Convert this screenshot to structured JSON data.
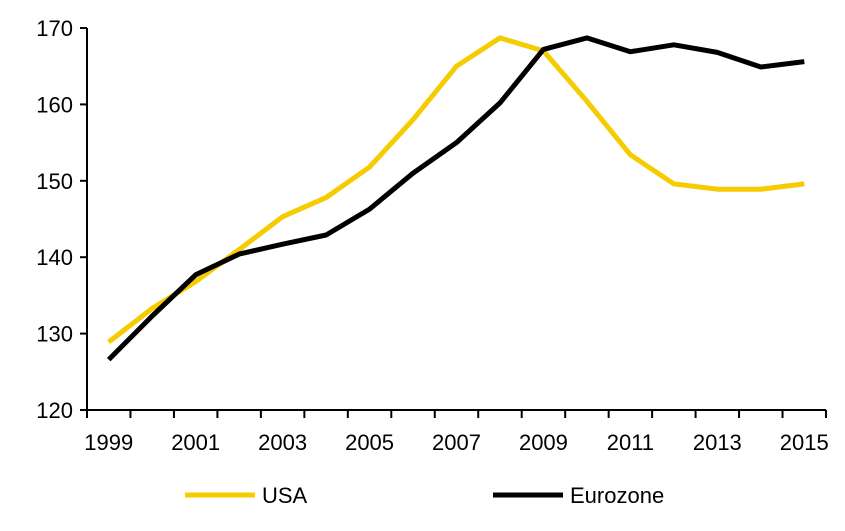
{
  "chart_data": {
    "type": "line",
    "title": "",
    "xlabel": "",
    "ylabel": "",
    "x": [
      1999,
      2000,
      2001,
      2002,
      2003,
      2004,
      2005,
      2006,
      2007,
      2008,
      2009,
      2010,
      2011,
      2012,
      2013,
      2014,
      2015
    ],
    "x_tick_labels": [
      "1999",
      "2001",
      "2003",
      "2005",
      "2007",
      "2009",
      "2011",
      "2013",
      "2015"
    ],
    "y_tick_labels": [
      "120",
      "130",
      "140",
      "150",
      "160",
      "170"
    ],
    "ylim": [
      120,
      170
    ],
    "grid": false,
    "legend_position": "bottom",
    "series": [
      {
        "name": "USA",
        "color": "#F5CC00",
        "values": [
          128.9,
          133.3,
          136.8,
          141.0,
          145.3,
          147.8,
          151.8,
          158.0,
          165.0,
          168.7,
          167.0,
          160.4,
          153.4,
          149.6,
          148.9,
          148.9,
          149.6
        ]
      },
      {
        "name": "Eurozone",
        "color": "#000000",
        "values": [
          126.6,
          132.3,
          137.7,
          140.4,
          141.7,
          142.9,
          146.3,
          151.0,
          155.0,
          160.2,
          167.2,
          168.7,
          166.9,
          167.8,
          166.8,
          164.9,
          165.6
        ]
      }
    ]
  }
}
